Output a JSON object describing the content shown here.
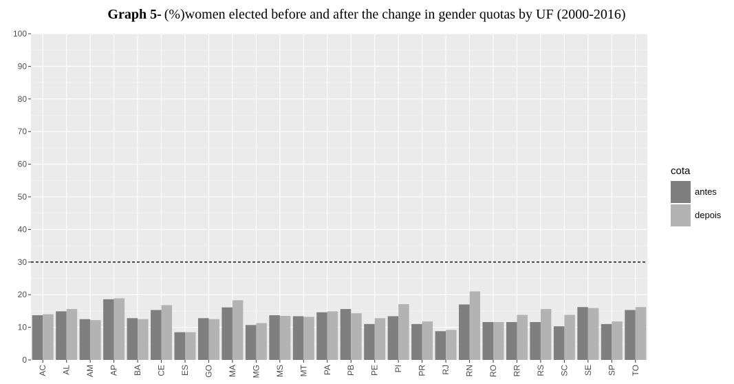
{
  "chart_data": {
    "type": "bar",
    "title_prefix": "Graph 5-",
    "title": "(%)women  elected before and after the change in gender quotas by UF (2000-2016)",
    "categories": [
      "AC",
      "AL",
      "AM",
      "AP",
      "BA",
      "CE",
      "ES",
      "GO",
      "MA",
      "MG",
      "MS",
      "MT",
      "PA",
      "PB",
      "PE",
      "PI",
      "PR",
      "RJ",
      "RN",
      "RO",
      "RR",
      "RS",
      "SC",
      "SE",
      "SP",
      "TO"
    ],
    "series": [
      {
        "name": "antes",
        "color": "#7f7f7f",
        "values": [
          13.7,
          14.9,
          12.5,
          18.6,
          12.8,
          15.3,
          8.5,
          12.8,
          16.1,
          10.7,
          13.7,
          13.4,
          14.6,
          15.6,
          11.0,
          13.4,
          11.0,
          8.8,
          17.0,
          11.6,
          11.6,
          11.6,
          10.3,
          16.2,
          11.0,
          15.3
        ]
      },
      {
        "name": "depois",
        "color": "#b3b3b3",
        "values": [
          14.0,
          15.6,
          12.2,
          18.9,
          12.5,
          16.8,
          8.5,
          12.5,
          18.3,
          11.3,
          13.5,
          13.2,
          14.9,
          14.3,
          12.8,
          17.1,
          11.8,
          9.2,
          21.0,
          11.6,
          13.8,
          15.6,
          13.8,
          15.9,
          11.8,
          16.2
        ]
      }
    ],
    "legend_title": "cota",
    "legend_position": "right",
    "ylim": [
      0,
      100
    ],
    "yticks": [
      0,
      10,
      20,
      30,
      40,
      50,
      60,
      70,
      80,
      90,
      100
    ],
    "reference_line": 30,
    "grid": true
  }
}
